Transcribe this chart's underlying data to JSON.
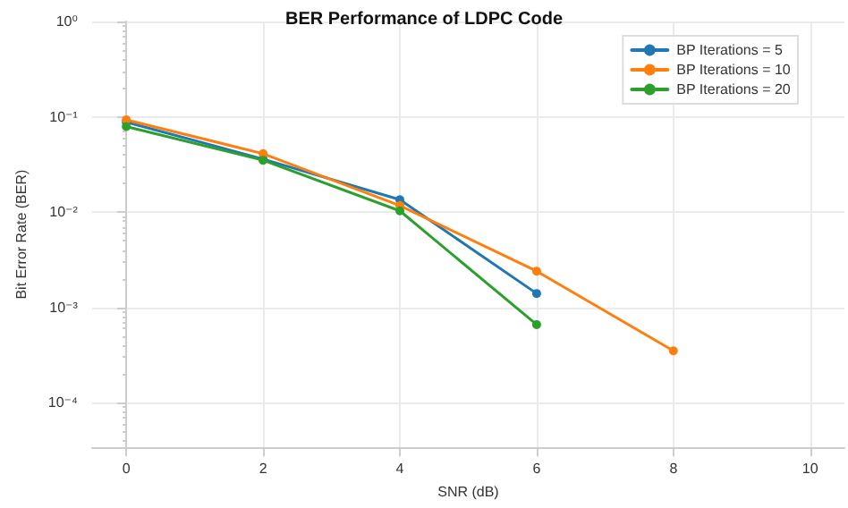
{
  "chart_data": {
    "type": "line",
    "title": "BER Performance of LDPC Code",
    "xlabel": "SNR (dB)",
    "ylabel": "Bit Error Rate (BER)",
    "x": [
      0,
      2,
      4,
      6,
      8
    ],
    "series": [
      {
        "name": "BP Iterations = 5",
        "color": "#1f77b4",
        "values": [
          0.088,
          0.036,
          0.0135,
          0.0014,
          null
        ]
      },
      {
        "name": "BP Iterations = 10",
        "color": "#ff7f0e",
        "values": [
          0.093,
          0.041,
          0.0117,
          0.0024,
          0.00035
        ]
      },
      {
        "name": "BP Iterations = 20",
        "color": "#2ca02c",
        "values": [
          0.079,
          0.035,
          0.0103,
          0.00066,
          null
        ]
      }
    ],
    "log": "y",
    "xlim": [
      -0.5,
      10.5
    ],
    "xticks": [
      0,
      2,
      4,
      6,
      8,
      10
    ],
    "ylim": [
      3.4e-05,
      1
    ],
    "yticks": [
      {
        "value": 0.0001,
        "label": "10⁻⁴"
      },
      {
        "value": 0.001,
        "label": "10⁻³"
      },
      {
        "value": 0.01,
        "label": "10⁻²"
      },
      {
        "value": 0.1,
        "label": "10⁻¹"
      },
      {
        "value": 1,
        "label": "10⁰"
      }
    ],
    "grid": true,
    "legend": "top right",
    "marker": "circle",
    "line_style": "solid"
  }
}
